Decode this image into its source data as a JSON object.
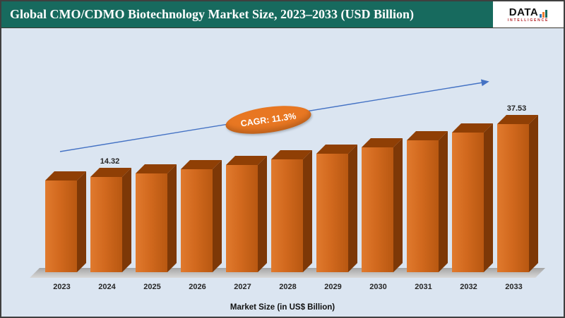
{
  "header": {
    "title": "Global CMO/CDMO Biotechnology Market Size, 2023–2033 (USD Billion)",
    "background": "#176a5e",
    "logo": {
      "text": "DATA",
      "subtext": "INTELLIGENCE",
      "icon": "bar-chart-icon"
    }
  },
  "chart_data": {
    "type": "bar",
    "title": "Global CMO/CDMO Biotechnology Market Size, 2023–2033 (USD Billion)",
    "categories": [
      "2023",
      "2024",
      "2025",
      "2026",
      "2027",
      "2028",
      "2029",
      "2030",
      "2031",
      "2032",
      "2033"
    ],
    "values": [
      12.87,
      14.32,
      15.94,
      17.74,
      19.74,
      21.97,
      24.46,
      27.22,
      30.29,
      33.72,
      37.53
    ],
    "visible_data_labels": {
      "2024": "14.32",
      "2033": "37.53"
    },
    "xlabel": "Market Size (in US$ Billion)",
    "ylabel": "",
    "annotation": "CAGR: 11.3%",
    "legend": "none",
    "grid": false,
    "background": "#dbe5f1",
    "bar_color": "#d2691e",
    "bar_side_color": "#7d3807",
    "bar_top_color": "#8f3f05",
    "trend_arrow_color": "#4472c4",
    "annotation_bg": "#e87722",
    "label_color": "#262626"
  }
}
